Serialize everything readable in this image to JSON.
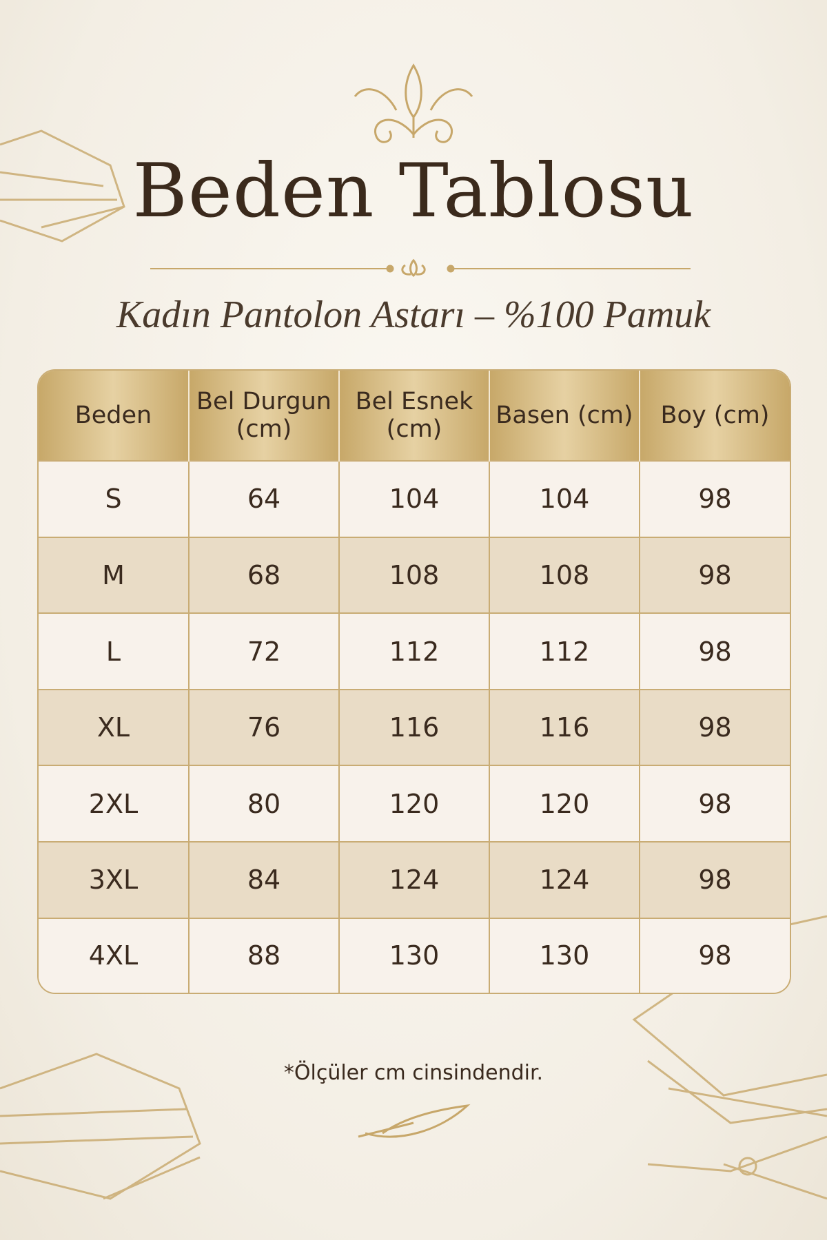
{
  "header": {
    "title": "Beden Tablosu",
    "subtitle": "Kadın Pantolon Astarı – %100 Pamuk"
  },
  "table": {
    "columns": [
      "Beden",
      "Bel Durgun (cm)",
      "Bel Esnek (cm)",
      "Basen (cm)",
      "Boy (cm)"
    ],
    "rows": [
      [
        "S",
        "64",
        "104",
        "104",
        "98"
      ],
      [
        "M",
        "68",
        "108",
        "108",
        "98"
      ],
      [
        "L",
        "72",
        "112",
        "112",
        "98"
      ],
      [
        "XL",
        "76",
        "116",
        "116",
        "98"
      ],
      [
        "2XL",
        "80",
        "120",
        "120",
        "98"
      ],
      [
        "3XL",
        "84",
        "124",
        "124",
        "98"
      ],
      [
        "4XL",
        "88",
        "130",
        "130",
        "98"
      ]
    ]
  },
  "footnote": "*Ölçüler cm cinsindendir."
}
